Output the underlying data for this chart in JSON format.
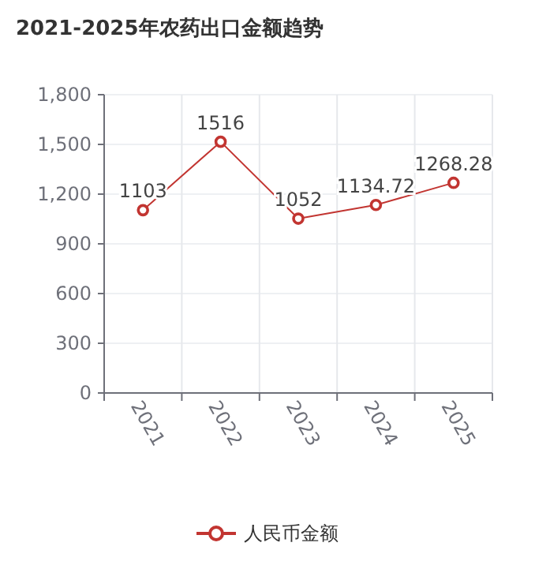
{
  "chart_data": {
    "type": "line",
    "title": "2021-2025年农药出口金额趋势",
    "categories": [
      "2021",
      "2022",
      "2023",
      "2024",
      "2025"
    ],
    "series": [
      {
        "name": "人民币金额",
        "color": "#c23531",
        "values": [
          1103,
          1516,
          1052,
          1134.72,
          1268.28
        ]
      }
    ],
    "ylim": [
      0,
      1800
    ],
    "yticks": [
      {
        "value": 0,
        "label": "0"
      },
      {
        "value": 300,
        "label": "300"
      },
      {
        "value": 600,
        "label": "600"
      },
      {
        "value": 900,
        "label": "900"
      },
      {
        "value": 1200,
        "label": "1,200"
      },
      {
        "value": 1500,
        "label": "1,500"
      },
      {
        "value": 1800,
        "label": "1,800"
      }
    ],
    "grid": true,
    "legend": "bottom",
    "marker": "circle",
    "line_style": "solid",
    "data_labels": true
  }
}
